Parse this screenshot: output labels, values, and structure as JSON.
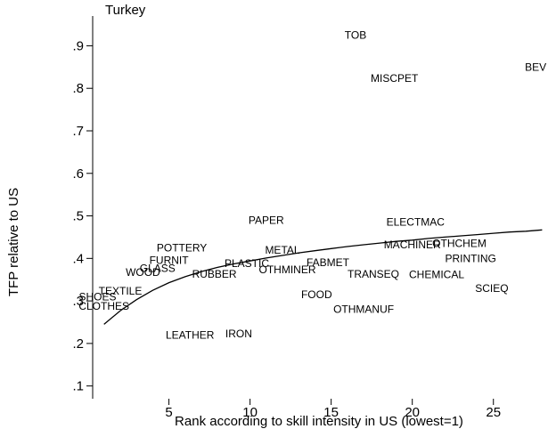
{
  "chart_data": {
    "type": "scatter",
    "title": "Turkey",
    "xlabel": "Rank according to skill intensity in US (lowest=1)",
    "ylabel": "TFP relative to US",
    "xlim": [
      0.3,
      28.2
    ],
    "ylim": [
      0.07,
      0.97
    ],
    "xticks": [
      5,
      10,
      15,
      20,
      25
    ],
    "yticks": [
      0.1,
      0.2,
      0.3,
      0.4,
      0.5,
      0.6,
      0.7,
      0.8,
      0.9
    ],
    "xtick_labels": [
      "5",
      "10",
      "15",
      "20",
      "25"
    ],
    "ytick_labels": [
      ".1",
      ".2",
      ".3",
      ".4",
      ".5",
      ".6",
      ".7",
      ".8",
      ".9"
    ],
    "grid": false,
    "points": [
      {
        "label": "SHOES",
        "x": 0.6,
        "y": 0.31
      },
      {
        "label": "CLOTHES",
        "x": 1.0,
        "y": 0.288
      },
      {
        "label": "TEXTILE",
        "x": 2.0,
        "y": 0.323
      },
      {
        "label": "WOOD",
        "x": 3.4,
        "y": 0.367
      },
      {
        "label": "GLASS",
        "x": 4.3,
        "y": 0.377
      },
      {
        "label": "FURNIT",
        "x": 5.0,
        "y": 0.395
      },
      {
        "label": "POTTERY",
        "x": 5.8,
        "y": 0.425
      },
      {
        "label": "LEATHER",
        "x": 6.3,
        "y": 0.22
      },
      {
        "label": "RUBBER",
        "x": 7.8,
        "y": 0.363
      },
      {
        "label": "IRON",
        "x": 9.3,
        "y": 0.223
      },
      {
        "label": "PLASTIC",
        "x": 9.8,
        "y": 0.388
      },
      {
        "label": "PAPER",
        "x": 11.0,
        "y": 0.49
      },
      {
        "label": "METAL",
        "x": 12.0,
        "y": 0.42
      },
      {
        "label": "OTHMINER",
        "x": 12.3,
        "y": 0.373
      },
      {
        "label": "FOOD",
        "x": 14.1,
        "y": 0.315
      },
      {
        "label": "FABMET",
        "x": 14.8,
        "y": 0.39
      },
      {
        "label": "TOB",
        "x": 16.5,
        "y": 0.925
      },
      {
        "label": "OTHMANUF",
        "x": 17.0,
        "y": 0.28
      },
      {
        "label": "TRANSEQ",
        "x": 17.6,
        "y": 0.363
      },
      {
        "label": "MISCPET",
        "x": 18.9,
        "y": 0.824
      },
      {
        "label": "ELECTMAC",
        "x": 20.2,
        "y": 0.485
      },
      {
        "label": "MACHINER",
        "x": 20.0,
        "y": 0.432
      },
      {
        "label": "OTHCHEM",
        "x": 22.9,
        "y": 0.435
      },
      {
        "label": "CHEMICAL",
        "x": 21.5,
        "y": 0.362
      },
      {
        "label": "PRINTING",
        "x": 23.6,
        "y": 0.4
      },
      {
        "label": "SCIEQ",
        "x": 24.9,
        "y": 0.33
      },
      {
        "label": "BEV",
        "x": 27.6,
        "y": 0.85
      }
    ],
    "fit_line": {
      "x": [
        1,
        2,
        3,
        4,
        5,
        6,
        7,
        8,
        9,
        10,
        11,
        12,
        13,
        14,
        15,
        16,
        17,
        18,
        19,
        20,
        21,
        22,
        23,
        24,
        25,
        26,
        27,
        28
      ],
      "y": [
        0.245,
        0.277,
        0.303,
        0.325,
        0.343,
        0.357,
        0.369,
        0.379,
        0.387,
        0.394,
        0.401,
        0.407,
        0.413,
        0.418,
        0.423,
        0.428,
        0.432,
        0.436,
        0.44,
        0.443,
        0.447,
        0.45,
        0.453,
        0.456,
        0.459,
        0.462,
        0.464,
        0.467
      ]
    }
  }
}
